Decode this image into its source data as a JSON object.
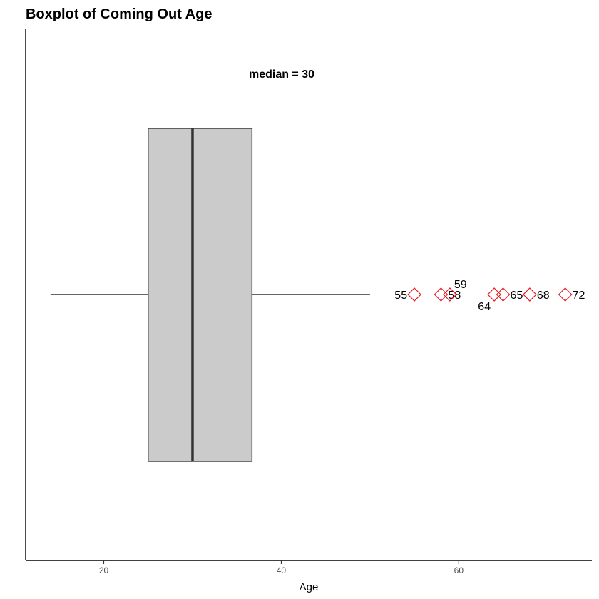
{
  "chart_data": {
    "type": "boxplot",
    "orientation": "horizontal",
    "title": "Boxplot of Coming Out Age",
    "xlabel": "Age",
    "ylabel": "",
    "xlim": [
      11.2,
      75
    ],
    "x_ticks": [
      20,
      40,
      60
    ],
    "grid": false,
    "box": {
      "whisker_low": 14,
      "q1": 25,
      "median": 30,
      "q3": 36.7,
      "whisker_high": 50,
      "fill": "#cbcbcb",
      "stroke": "#333333"
    },
    "annotation": "median =  30",
    "outliers": [
      {
        "value": 55,
        "label": "55",
        "label_side": "left"
      },
      {
        "value": 58,
        "label": "58",
        "label_side": "right"
      },
      {
        "value": 59,
        "label": "59",
        "label_side": "up"
      },
      {
        "value": 64,
        "label": "64",
        "label_side": "down"
      },
      {
        "value": 65,
        "label": "65",
        "label_side": "right"
      },
      {
        "value": 68,
        "label": "68",
        "label_side": "right"
      },
      {
        "value": 72,
        "label": "72",
        "label_side": "right"
      }
    ],
    "outlier_color": "#e8161c"
  }
}
